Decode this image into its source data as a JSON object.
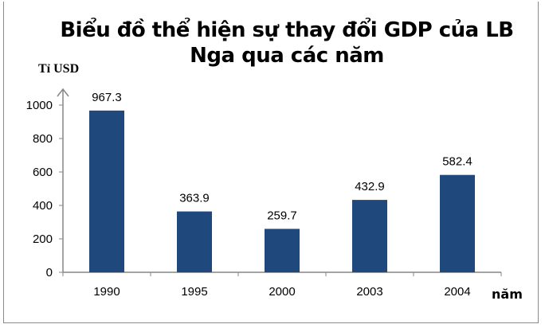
{
  "chart_data": {
    "type": "bar",
    "title": "Biểu đồ thể hiện sự thay đổi GDP của LB Nga qua các năm",
    "title_lines": [
      "Biểu đồ thể hiện sự thay đổi GDP của LB",
      "Nga qua các năm"
    ],
    "ylabel": "Tỉ USD",
    "xlabel": "năm",
    "categories": [
      "1990",
      "1995",
      "2000",
      "2003",
      "2004"
    ],
    "values": [
      967.3,
      363.9,
      259.7,
      432.9,
      582.4
    ],
    "data_labels": [
      "967.3",
      "363.9",
      "259.7",
      "432.9",
      "582.4"
    ],
    "ylim": [
      0,
      1000
    ],
    "yticks": [
      0,
      200,
      400,
      600,
      800,
      1000
    ],
    "grid": false,
    "bar_color": "#1F497D"
  }
}
